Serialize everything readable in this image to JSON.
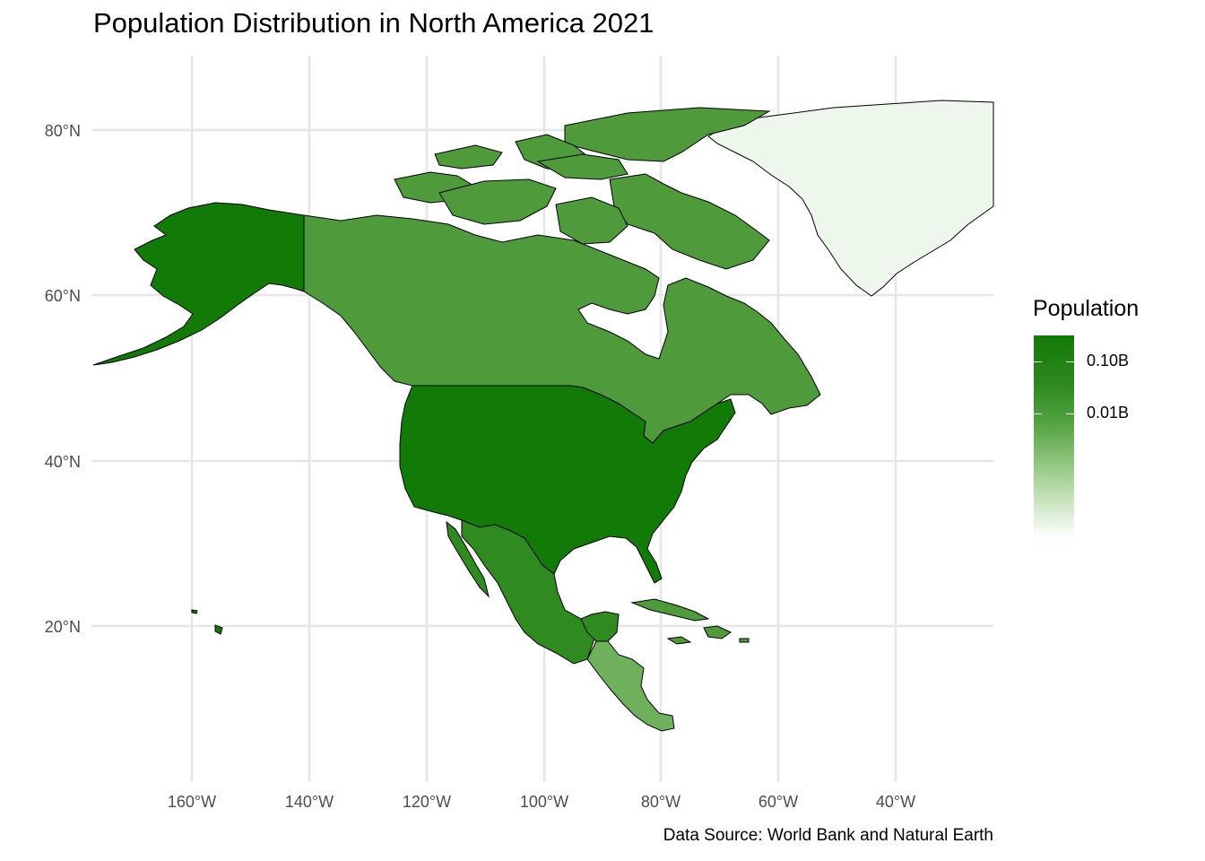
{
  "title": "Population Distribution in North America 2021",
  "caption": "Data Source: World Bank and Natural Earth",
  "legend": {
    "title": "Population",
    "labels": [
      "0.10B",
      "0.01B"
    ],
    "low_color": "#ffffff",
    "high_color": "#127a07"
  },
  "axes": {
    "x_ticks": [
      "160°W",
      "140°W",
      "120°W",
      "100°W",
      "80°W",
      "60°W",
      "40°W"
    ],
    "y_ticks": [
      "80°N",
      "60°N",
      "40°N",
      "20°N"
    ]
  },
  "chart_data": {
    "type": "choropleth",
    "title": "Population Distribution in North America 2021",
    "caption": "Data Source: World Bank and Natural Earth",
    "legend_title": "Population",
    "legend_labels": [
      "0.10B",
      "0.01B"
    ],
    "legend_placement": "right",
    "grid": true,
    "x_ticks": [
      "160°W",
      "140°W",
      "120°W",
      "100°W",
      "80°W",
      "60°W",
      "40°W"
    ],
    "y_ticks": [
      "80°N",
      "60°N",
      "40°N",
      "20°N"
    ],
    "colors": {
      "United States": "#127a07",
      "Mexico": "#2f8a1f",
      "Canada": "#4f9b3b",
      "Central America": "#6fb05c",
      "Caribbean": "#4f9b3b",
      "Greenland": "#eef7ec"
    }
  }
}
